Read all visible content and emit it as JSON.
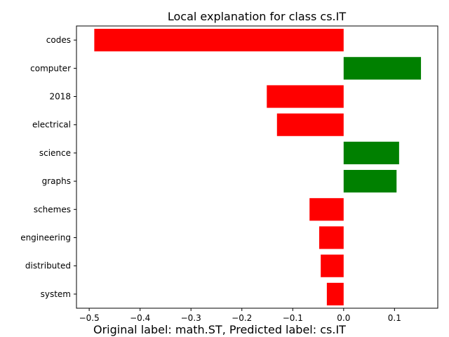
{
  "chart_data": {
    "type": "bar",
    "orientation": "horizontal",
    "title": "Local explanation for class cs.IT",
    "xlabel": "",
    "ylabel": "",
    "categories": [
      "codes",
      "computer",
      "2018",
      "electrical",
      "science",
      "graphs",
      "schemes",
      "engineering",
      "distributed",
      "system"
    ],
    "values": [
      -0.49,
      0.152,
      -0.151,
      -0.131,
      0.109,
      0.104,
      -0.067,
      -0.048,
      -0.045,
      -0.033
    ],
    "xlim": [
      -0.525,
      0.185
    ],
    "xticks": [
      -0.5,
      -0.4,
      -0.3,
      -0.2,
      -0.1,
      0.0,
      0.1
    ],
    "xtick_labels": [
      "−0.5",
      "−0.4",
      "−0.3",
      "−0.2",
      "−0.1",
      "0.0",
      "0.1"
    ],
    "positive_color": "#008000",
    "negative_color": "#ff0000",
    "grid": false,
    "legend": "none"
  },
  "caption": "Original label: math.ST, Predicted label: cs.IT"
}
